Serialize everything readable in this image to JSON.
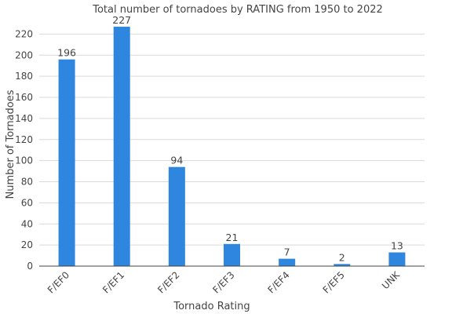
{
  "chart_data": {
    "type": "bar",
    "title": "Total number of tornadoes by RATING from 1950 to 2022",
    "xlabel": "Tornado Rating",
    "ylabel": "Number of Tornadoes",
    "categories": [
      "F/EF0",
      "F/EF1",
      "F/EF2",
      "F/EF3",
      "F/EF4",
      "F/EF5",
      "UNK"
    ],
    "values": [
      196,
      227,
      94,
      21,
      7,
      2,
      13
    ],
    "data_labels": [
      "196",
      "227",
      "94",
      "21",
      "7",
      "2",
      "13"
    ],
    "ylim": [
      0,
      230
    ],
    "yticks": [
      0,
      20,
      40,
      60,
      80,
      100,
      120,
      140,
      160,
      180,
      200,
      220
    ],
    "grid": true,
    "bar_color": "#2e86de"
  }
}
